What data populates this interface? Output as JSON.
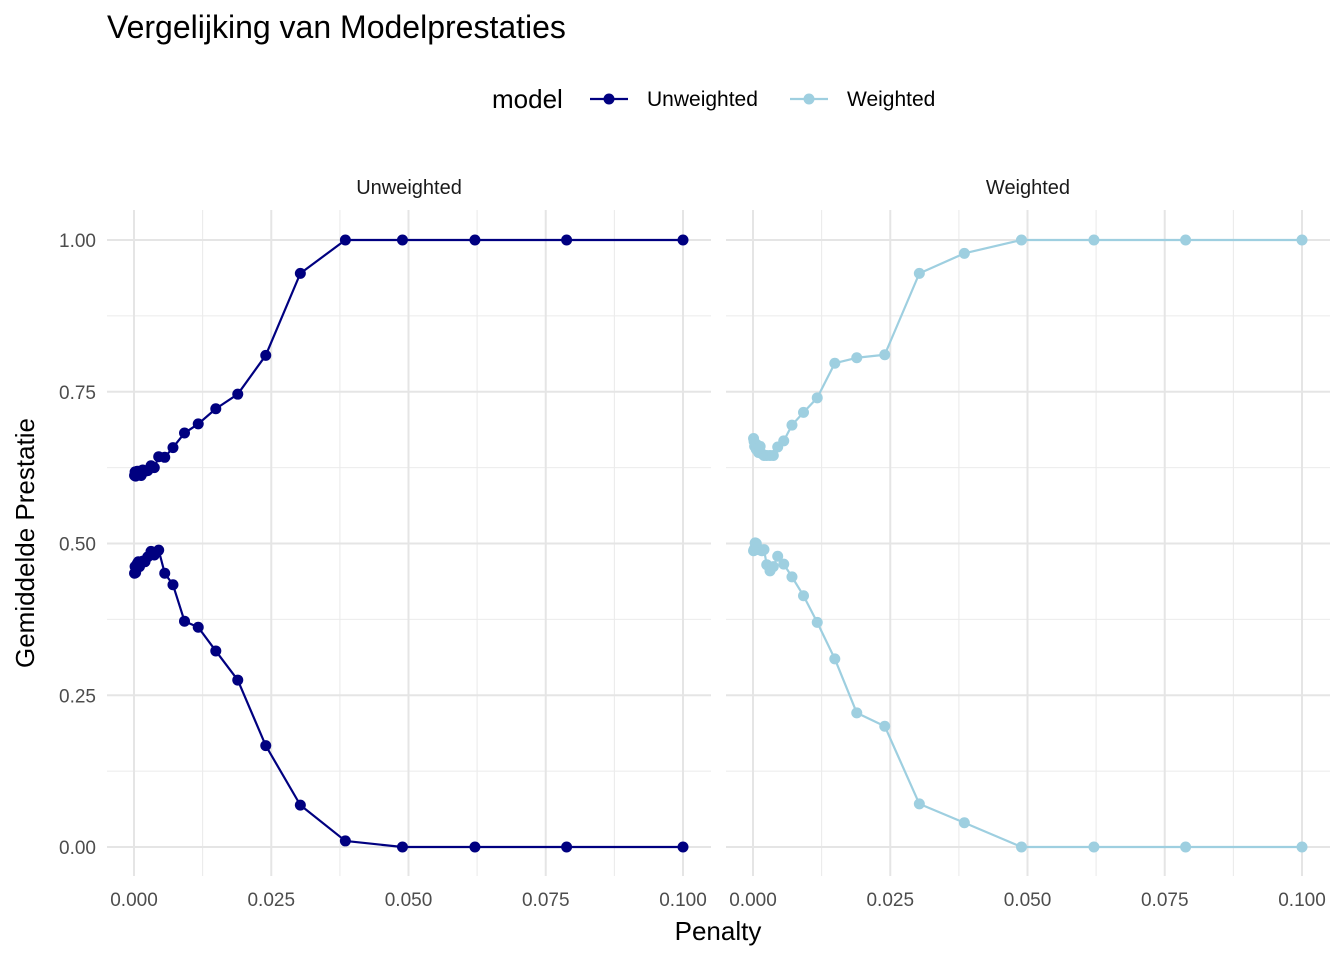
{
  "chart_data": {
    "type": "line",
    "title": "Vergelijking van Modelprestaties",
    "xlabel": "Penalty",
    "ylabel": "Gemiddelde Prestatie",
    "xlim": [
      0,
      0.1
    ],
    "ylim": [
      0,
      1
    ],
    "x_ticks": [
      "0.000",
      "0.025",
      "0.050",
      "0.075",
      "0.100"
    ],
    "y_ticks": [
      "0.00",
      "0.25",
      "0.50",
      "0.75",
      "1.00"
    ],
    "grid": true,
    "legend": {
      "title": "model",
      "position": "top",
      "items": [
        {
          "label": "Unweighted",
          "color": "#000080"
        },
        {
          "label": "Weighted",
          "color": "#9ecfe0"
        }
      ]
    },
    "facets": [
      {
        "label": "Unweighted",
        "color": "#000080",
        "series": [
          {
            "x": [
              0.0001,
              0.0002,
              0.0003,
              0.0004,
              0.0006,
              0.0008,
              0.001,
              0.0013,
              0.0016,
              0.002,
              0.0025,
              0.0031,
              0.0037,
              0.0045,
              0.0056,
              0.0071,
              0.0092,
              0.0117,
              0.0149,
              0.0189,
              0.024,
              0.0303,
              0.0385,
              0.0489,
              0.0621,
              0.0788,
              0.1
            ],
            "y": [
              0.612,
              0.618,
              0.611,
              0.615,
              0.619,
              0.613,
              0.619,
              0.612,
              0.621,
              0.619,
              0.62,
              0.628,
              0.625,
              0.643,
              0.642,
              0.658,
              0.682,
              0.697,
              0.722,
              0.746,
              0.81,
              0.945,
              1.0,
              1.0,
              1.0,
              1.0,
              1.0
            ]
          },
          {
            "x": [
              0.0001,
              0.0002,
              0.0003,
              0.0004,
              0.0006,
              0.0008,
              0.001,
              0.0013,
              0.0016,
              0.002,
              0.0025,
              0.0031,
              0.0037,
              0.0045,
              0.0056,
              0.0071,
              0.0092,
              0.0117,
              0.0149,
              0.0189,
              0.024,
              0.0303,
              0.0385,
              0.0489,
              0.0621,
              0.0788,
              0.1
            ],
            "y": [
              0.451,
              0.462,
              0.452,
              0.458,
              0.467,
              0.47,
              0.462,
              0.469,
              0.471,
              0.47,
              0.478,
              0.487,
              0.481,
              0.489,
              0.451,
              0.432,
              0.372,
              0.362,
              0.323,
              0.275,
              0.167,
              0.069,
              0.01,
              0.0,
              0.0,
              0.0,
              0.0
            ]
          }
        ]
      },
      {
        "label": "Weighted",
        "color": "#9ecfe0",
        "series": [
          {
            "x": [
              0.0001,
              0.0002,
              0.0003,
              0.0004,
              0.0006,
              0.0008,
              0.001,
              0.0013,
              0.0016,
              0.002,
              0.0025,
              0.0031,
              0.0037,
              0.0045,
              0.0056,
              0.0071,
              0.0092,
              0.0117,
              0.0149,
              0.0189,
              0.024,
              0.0303,
              0.0385,
              0.0489,
              0.0621,
              0.0788,
              0.1
            ],
            "y": [
              0.673,
              0.668,
              0.66,
              0.665,
              0.655,
              0.662,
              0.65,
              0.66,
              0.648,
              0.645,
              0.645,
              0.645,
              0.645,
              0.659,
              0.669,
              0.695,
              0.716,
              0.74,
              0.797,
              0.806,
              0.811,
              0.945,
              0.978,
              1.0,
              1.0,
              1.0,
              1.0
            ]
          },
          {
            "x": [
              0.0001,
              0.0002,
              0.0003,
              0.0004,
              0.0006,
              0.0008,
              0.001,
              0.0013,
              0.0016,
              0.002,
              0.0025,
              0.0031,
              0.0037,
              0.0045,
              0.0056,
              0.0071,
              0.0092,
              0.0117,
              0.0149,
              0.0189,
              0.024,
              0.0303,
              0.0385,
              0.0489,
              0.0621,
              0.0788,
              0.1
            ],
            "y": [
              0.488,
              0.49,
              0.492,
              0.501,
              0.5,
              0.493,
              0.49,
              0.49,
              0.488,
              0.49,
              0.465,
              0.455,
              0.462,
              0.479,
              0.466,
              0.445,
              0.414,
              0.37,
              0.31,
              0.221,
              0.199,
              0.071,
              0.04,
              0.0,
              0.0,
              0.0,
              0.0
            ]
          }
        ]
      }
    ]
  }
}
